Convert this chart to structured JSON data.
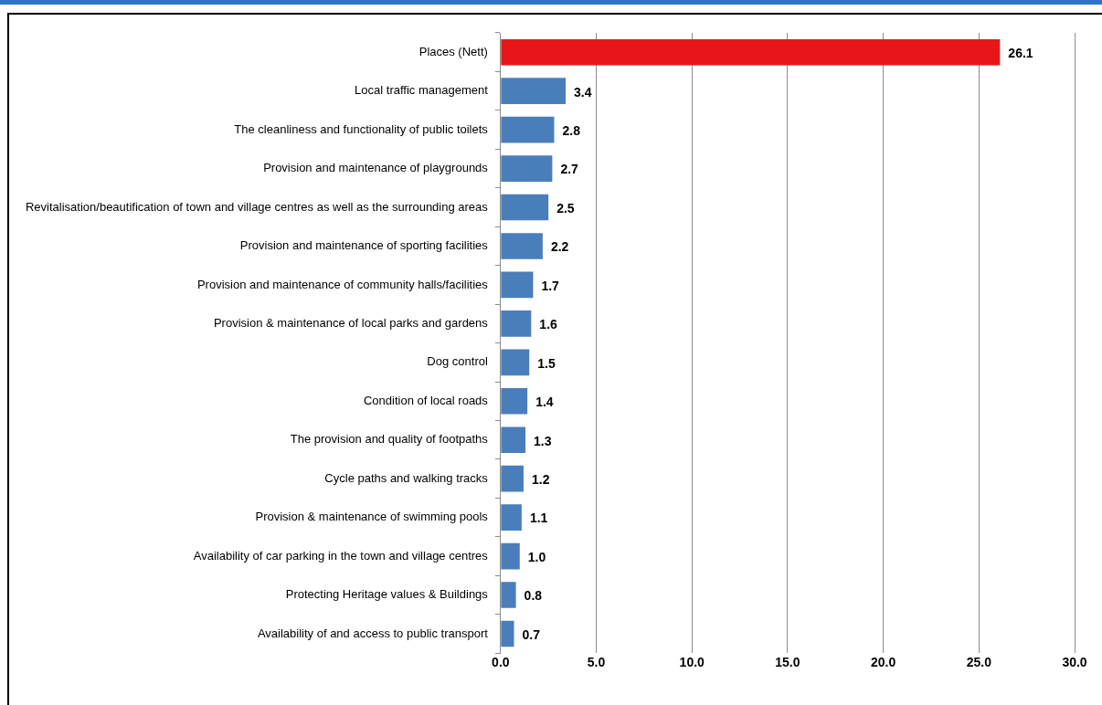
{
  "chart_data": {
    "type": "bar",
    "orientation": "horizontal",
    "categories": [
      "Places (Nett)",
      "Local traffic management",
      "The cleanliness and functionality of public toilets",
      "Provision and maintenance of playgrounds",
      "Revitalisation/beautification of town and village centres as well as the surrounding areas",
      "Provision and maintenance of sporting facilities",
      "Provision and maintenance of community halls/facilities",
      "Provision & maintenance of local parks and gardens",
      "Dog control",
      "Condition of local roads",
      "The provision and quality of footpaths",
      "Cycle paths and walking tracks",
      "Provision & maintenance of swimming pools",
      "Availability of car parking in the town and village centres",
      "Protecting Heritage values & Buildings",
      "Availability of and access to public transport"
    ],
    "values": [
      26.1,
      3.4,
      2.8,
      2.7,
      2.5,
      2.2,
      1.7,
      1.6,
      1.5,
      1.4,
      1.3,
      1.2,
      1.1,
      1.0,
      0.8,
      0.7
    ],
    "value_labels": [
      "26.1",
      "3.4",
      "2.8",
      "2.7",
      "2.5",
      "2.2",
      "1.7",
      "1.6",
      "1.5",
      "1.4",
      "1.3",
      "1.2",
      "1.1",
      "1.0",
      "0.8",
      "0.7"
    ],
    "colors": [
      "#e8161b",
      "#4a7ebb",
      "#4a7ebb",
      "#4a7ebb",
      "#4a7ebb",
      "#4a7ebb",
      "#4a7ebb",
      "#4a7ebb",
      "#4a7ebb",
      "#4a7ebb",
      "#4a7ebb",
      "#4a7ebb",
      "#4a7ebb",
      "#4a7ebb",
      "#4a7ebb",
      "#4a7ebb"
    ],
    "xlim": [
      0,
      30
    ],
    "xticks": [
      {
        "value": 0,
        "label": "0.0"
      },
      {
        "value": 5,
        "label": "5.0"
      },
      {
        "value": 10,
        "label": "10.0"
      },
      {
        "value": 15,
        "label": "15.0"
      },
      {
        "value": 20,
        "label": "20.0"
      },
      {
        "value": 25,
        "label": "25.0"
      },
      {
        "value": 30,
        "label": "30.0"
      }
    ],
    "grid": "x",
    "legend": false
  }
}
